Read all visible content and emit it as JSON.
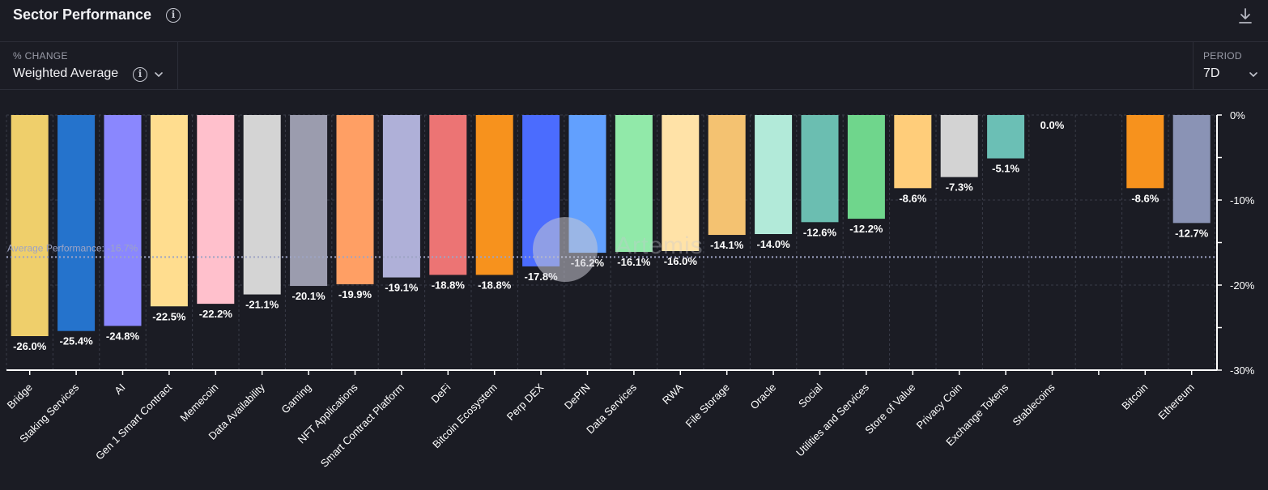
{
  "header": {
    "title": "Sector Performance"
  },
  "controls": {
    "metric_label": "% CHANGE",
    "metric_value": "Weighted Average",
    "period_label": "PERIOD",
    "period_value": "7D"
  },
  "watermark": "Artemis",
  "colors": {
    "background": "#1b1c24",
    "grid": "#3a3c48",
    "axis": "#ffffff",
    "avg_line": "#9ea4c4"
  },
  "chart_data": {
    "type": "bar",
    "categories": [
      "Bridge",
      "Staking Services",
      "AI",
      "Gen 1 Smart Contract",
      "Memecoin",
      "Data Availability",
      "Gaming",
      "NFT Applications",
      "Smart Contract Platform",
      "DeFi",
      "Bitcoin Ecosystem",
      "Perp DEX",
      "DePIN",
      "Data Services",
      "RWA",
      "File Storage",
      "Oracle",
      "Social",
      "Utilities and Services",
      "Store of Value",
      "Privacy Coin",
      "Exchange Tokens",
      "Stablecoins",
      "",
      "Bitcoin",
      "Ethereum"
    ],
    "values": [
      -26.0,
      -25.4,
      -24.8,
      -22.5,
      -22.2,
      -21.1,
      -20.1,
      -19.9,
      -19.1,
      -18.8,
      -18.8,
      -17.8,
      -16.2,
      -16.1,
      -16.0,
      -14.1,
      -14.0,
      -12.6,
      -12.2,
      -8.6,
      -7.3,
      -5.1,
      0.0,
      null,
      -8.6,
      -12.7
    ],
    "data_labels": [
      "-26.0%",
      "-25.4%",
      "-24.8%",
      "-22.5%",
      "-22.2%",
      "-21.1%",
      "-20.1%",
      "-19.9%",
      "-19.1%",
      "-18.8%",
      "-18.8%",
      "-17.8%",
      "-16.2%",
      "-16.1%",
      "-16.0%",
      "-14.1%",
      "-14.0%",
      "-12.6%",
      "-12.2%",
      "-8.6%",
      "-7.3%",
      "-5.1%",
      "0.0%",
      "",
      "-8.6%",
      "-12.7%"
    ],
    "colors": [
      "#efcf6b",
      "#2573cc",
      "#8a87fe",
      "#ffdd8f",
      "#ffc0cc",
      "#d4d4d4",
      "#9b9cae",
      "#ff9f64",
      "#afb0d8",
      "#ec7474",
      "#f7921d",
      "#4b6cfe",
      "#62a0fe",
      "#91e9a9",
      "#ffe2a7",
      "#f4c271",
      "#b2ead9",
      "#6bbeb1",
      "#6fd68c",
      "#ffcd7a",
      "#d3d3d3",
      "#6bbfb5",
      "#ffffff",
      "",
      "#f7921d",
      "#8a93b5"
    ],
    "yticks": [
      0,
      -10,
      -20,
      -30
    ],
    "ytick_labels": [
      "0%",
      "-10%",
      "-20%",
      "-30%"
    ],
    "ylim": [
      -30,
      0
    ],
    "average": -16.7,
    "average_label": "Average Performance: -16.7%",
    "grid": true
  }
}
